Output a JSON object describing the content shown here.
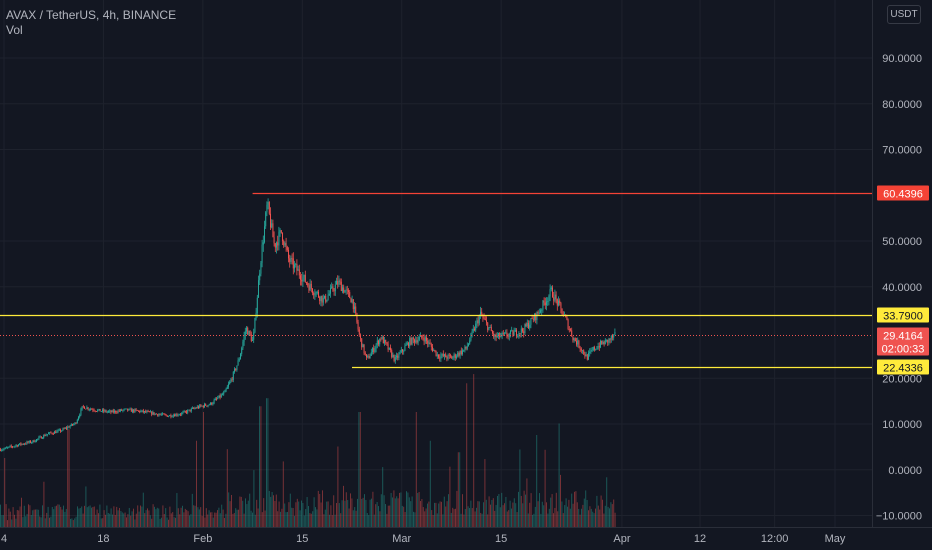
{
  "header": {
    "symbol_line": "AVAX / TetherUS, 4h, BINANCE",
    "volume_label": "Vol"
  },
  "currency": "USDT",
  "colors": {
    "background": "#131722",
    "up": "#26a69a",
    "down": "#ef5350",
    "support_resistance": "#ffeb3b",
    "top_line": "#f44336",
    "axis_text": "#b2b5be",
    "current_price_tag": "#ef5350"
  },
  "chart_data": {
    "type": "candlestick",
    "symbol": "AVAX / TetherUS",
    "interval": "4h",
    "exchange": "BINANCE",
    "y_axis": {
      "range": [
        -12.5,
        97
      ],
      "ticks": [
        "90.0000",
        "80.0000",
        "70.0000",
        "50.0000",
        "40.0000",
        "20.0000",
        "10.0000",
        "0.0000",
        "−10.0000"
      ],
      "tick_values": [
        90,
        80,
        70,
        50,
        40,
        20,
        10,
        0,
        -10
      ]
    },
    "x_axis": {
      "ticks": [
        "4",
        "18",
        "Feb",
        "15",
        "Mar",
        "15",
        "Apr",
        "12",
        "12:00",
        "May"
      ],
      "tick_dates": [
        "2021-01-04",
        "2021-01-18",
        "2021-02-01",
        "2021-02-15",
        "2021-03-01",
        "2021-03-15",
        "2021-04-01",
        "2021-04-12",
        "2021-04-22 12:00",
        "2021-05-01"
      ]
    },
    "horizontal_lines": [
      {
        "label": "60.4396",
        "value": 60.4396,
        "color": "#f44336",
        "start_date": "2021-02-08"
      },
      {
        "label": "33.7900",
        "value": 33.79,
        "color": "#ffeb3b",
        "start_date": "2021-01-01"
      },
      {
        "label": "22.4336",
        "value": 22.4336,
        "color": "#ffeb3b",
        "start_date": "2021-02-22"
      }
    ],
    "current_price": {
      "value": 29.4164,
      "label": "29.4164",
      "countdown": "02:00:33"
    },
    "price_path": [
      [
        "2021-01-01",
        3.9
      ],
      [
        "2021-01-04",
        4.6
      ],
      [
        "2021-01-06",
        5.5
      ],
      [
        "2021-01-08",
        6.2
      ],
      [
        "2021-01-10",
        7.8
      ],
      [
        "2021-01-12",
        8.6
      ],
      [
        "2021-01-14",
        10.2
      ],
      [
        "2021-01-15",
        13.8
      ],
      [
        "2021-01-17",
        13.0
      ],
      [
        "2021-01-19",
        12.6
      ],
      [
        "2021-01-21",
        13.1
      ],
      [
        "2021-01-23",
        12.8
      ],
      [
        "2021-01-25",
        12.3
      ],
      [
        "2021-01-27",
        11.8
      ],
      [
        "2021-01-29",
        12.3
      ],
      [
        "2021-01-31",
        13.6
      ],
      [
        "2021-02-02",
        14.4
      ],
      [
        "2021-02-04",
        16.8
      ],
      [
        "2021-02-05",
        20.0
      ],
      [
        "2021-02-06",
        24.0
      ],
      [
        "2021-02-07",
        31.0
      ],
      [
        "2021-02-08",
        28.0
      ],
      [
        "2021-02-09",
        45.0
      ],
      [
        "2021-02-10",
        58.0
      ],
      [
        "2021-02-11",
        49.0
      ],
      [
        "2021-02-12",
        52.0
      ],
      [
        "2021-02-13",
        46.0
      ],
      [
        "2021-02-14",
        44.0
      ],
      [
        "2021-02-16",
        40.0
      ],
      [
        "2021-02-18",
        37.0
      ],
      [
        "2021-02-20",
        41.0
      ],
      [
        "2021-02-22",
        37.0
      ],
      [
        "2021-02-23",
        29.0
      ],
      [
        "2021-02-24",
        24.0
      ],
      [
        "2021-02-26",
        29.0
      ],
      [
        "2021-02-28",
        24.0
      ],
      [
        "2021-03-02",
        28.0
      ],
      [
        "2021-03-04",
        29.0
      ],
      [
        "2021-03-06",
        25.0
      ],
      [
        "2021-03-08",
        24.5
      ],
      [
        "2021-03-10",
        26.5
      ],
      [
        "2021-03-12",
        34.0
      ],
      [
        "2021-03-14",
        29.0
      ],
      [
        "2021-03-16",
        29.5
      ],
      [
        "2021-03-18",
        30.5
      ],
      [
        "2021-03-20",
        34.0
      ],
      [
        "2021-03-22",
        39.0
      ],
      [
        "2021-03-24",
        33.0
      ],
      [
        "2021-03-25",
        29.0
      ],
      [
        "2021-03-26",
        27.0
      ],
      [
        "2021-03-27",
        24.5
      ],
      [
        "2021-03-28",
        26.5
      ],
      [
        "2021-03-29",
        27.5
      ],
      [
        "2021-03-30",
        28.2
      ],
      [
        "2021-03-31",
        29.4
      ]
    ],
    "volume_spikes": [
      [
        "2021-01-04",
        0.6
      ],
      [
        "2021-01-13",
        0.85
      ],
      [
        "2021-01-31",
        0.75
      ],
      [
        "2021-02-01",
        1.0
      ],
      [
        "2021-02-09",
        1.05
      ],
      [
        "2021-02-10",
        1.12
      ],
      [
        "2021-02-20",
        0.7
      ],
      [
        "2021-02-23",
        1.0
      ],
      [
        "2021-03-03",
        1.0
      ],
      [
        "2021-03-05",
        0.75
      ],
      [
        "2021-03-09",
        0.65
      ],
      [
        "2021-03-10",
        1.25
      ],
      [
        "2021-03-11",
        1.33
      ],
      [
        "2021-03-20",
        0.8
      ],
      [
        "2021-03-23",
        0.9
      ]
    ]
  }
}
